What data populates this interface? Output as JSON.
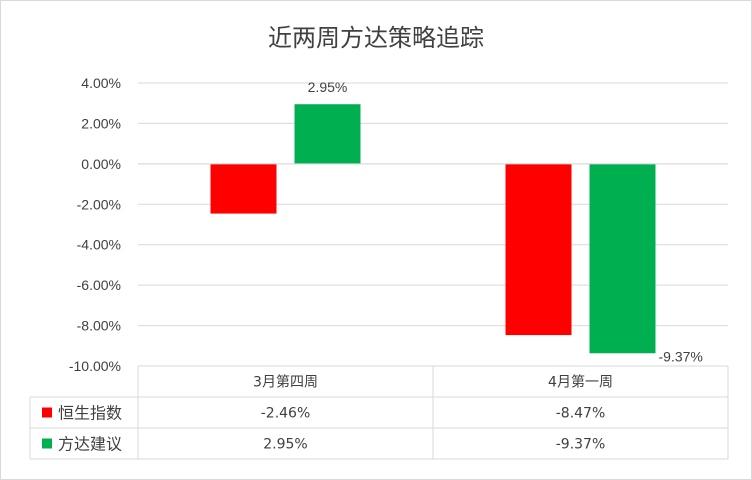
{
  "chart_data": {
    "type": "bar",
    "title": "近两周方达策略追踪",
    "categories": [
      "3月第四周",
      "4月第一周"
    ],
    "series": [
      {
        "name": "恒生指数",
        "color": "#ff0000",
        "values": [
          -2.46,
          -8.47
        ],
        "labels": [
          "-2.46%",
          "-8.47%"
        ]
      },
      {
        "name": "方达建议",
        "color": "#00b050",
        "values": [
          2.95,
          -9.37
        ],
        "labels": [
          "2.95%",
          "-9.37%"
        ]
      }
    ],
    "data_labels": [
      {
        "series": 1,
        "index": 0,
        "text": "2.95%"
      },
      {
        "series": 1,
        "index": 1,
        "text": "-9.37%"
      }
    ],
    "ylim": [
      -10,
      4
    ],
    "yticks": [
      "4.00%",
      "2.00%",
      "0.00%",
      "-2.00%",
      "-4.00%",
      "-6.00%",
      "-8.00%",
      "-10.00%"
    ],
    "ytick_values": [
      4,
      2,
      0,
      -2,
      -4,
      -6,
      -8,
      -10
    ],
    "grid": true,
    "legend": "data-table"
  }
}
